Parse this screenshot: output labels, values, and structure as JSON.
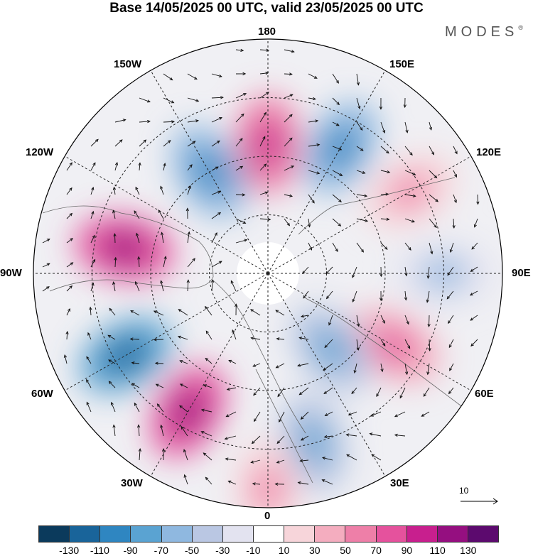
{
  "title": "Base 14/05/2025 00 UTC, valid 23/05/2025 00 UTC",
  "brand": {
    "text": "MODES",
    "mark": "®"
  },
  "lon_labels": {
    "n180": "180",
    "e150": "150E",
    "e120": "120E",
    "e90": "90E",
    "e60": "60E",
    "e30": "30E",
    "s0": "0",
    "w30": "30W",
    "w60": "60W",
    "w90": "90W",
    "w120": "120W",
    "w150": "150W"
  },
  "reference_vector": "10",
  "colorbar": {
    "colors": [
      "#0b3a5c",
      "#19649a",
      "#2f86c1",
      "#5aa3d2",
      "#8fb8e0",
      "#bac7e3",
      "#e3e3f0",
      "#ffffff",
      "#f7d5da",
      "#f4adbf",
      "#ee7fa8",
      "#e5529d",
      "#c81f8e",
      "#950f80",
      "#5c0a6e"
    ],
    "ticks": [
      "-130",
      "-110",
      "-90",
      "-70",
      "-50",
      "-30",
      "-10",
      "10",
      "30",
      "50",
      "70",
      "90",
      "110",
      "130"
    ]
  },
  "anomaly_cells": [
    {
      "lon": 180,
      "r": 0.55,
      "sign": 1,
      "level": 3
    },
    {
      "lon": 210,
      "r": 0.5,
      "sign": -1,
      "level": 3
    },
    {
      "lon": 150,
      "r": 0.62,
      "sign": -1,
      "level": 3
    },
    {
      "lon": 260,
      "r": 0.62,
      "sign": 1,
      "level": 4
    },
    {
      "lon": 300,
      "r": 0.7,
      "sign": -1,
      "level": 4
    },
    {
      "lon": 330,
      "r": 0.68,
      "sign": 1,
      "level": 4
    },
    {
      "lon": 90,
      "r": 0.75,
      "sign": -1,
      "level": 1
    },
    {
      "lon": 60,
      "r": 0.62,
      "sign": 1,
      "level": 2
    },
    {
      "lon": 40,
      "r": 0.42,
      "sign": -1,
      "level": 2
    },
    {
      "lon": 15,
      "r": 0.75,
      "sign": -1,
      "level": 2
    },
    {
      "lon": 0,
      "r": 0.92,
      "sign": 1,
      "level": 1
    },
    {
      "lon": 120,
      "r": 0.7,
      "sign": 1,
      "level": 1
    }
  ]
}
